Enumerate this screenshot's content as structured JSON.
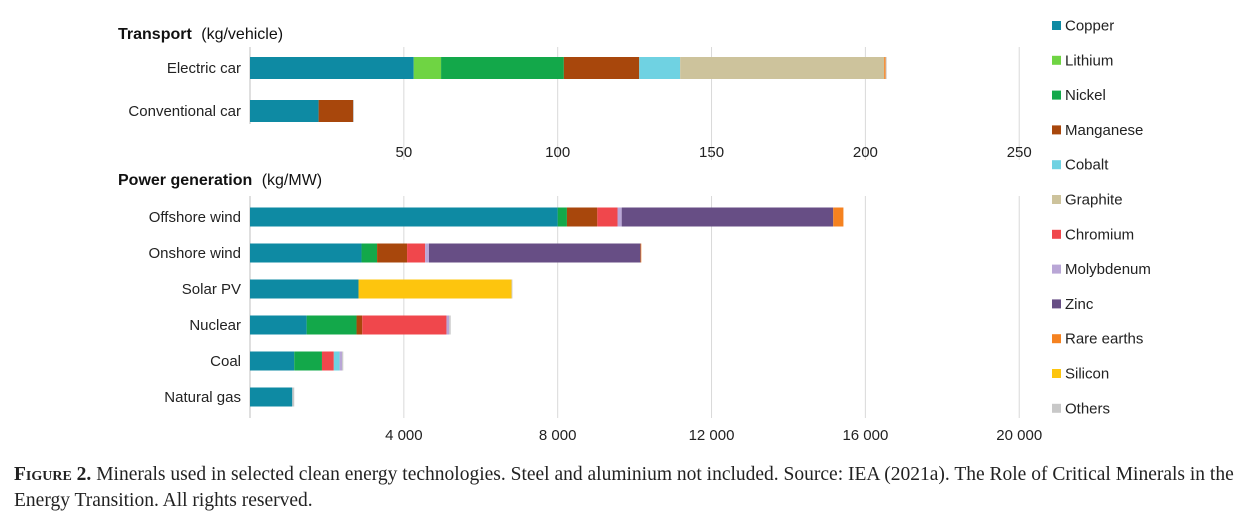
{
  "caption": {
    "figure_number": "Figure 2.",
    "text": "Minerals used in selected clean energy technologies. Steel and aluminium not included. Source: IEA (2021a). The Role of Critical Minerals in the Energy Transition. All rights reserved."
  },
  "colors": {
    "Copper": "#0e8aa3",
    "Lithium": "#6fd443",
    "Nickel": "#13a84a",
    "Manganese": "#a8470c",
    "Cobalt": "#6fd2e2",
    "Graphite": "#cdc39c",
    "Chromium": "#f0474c",
    "Molybdenum": "#b9a6d6",
    "Zinc": "#674e85",
    "Rare earths": "#f58220",
    "Silicon": "#fdc50e",
    "Others": "#c8c8c8"
  },
  "chart_data": [
    {
      "type": "bar",
      "orientation": "horizontal",
      "stacked": true,
      "title": "Transport",
      "title_unit": "(kg/vehicle)",
      "categories": [
        "Electric car",
        "Conventional car"
      ],
      "xlim": [
        0,
        260
      ],
      "xticks": [
        50,
        100,
        150,
        200,
        250
      ],
      "xtick_labels": [
        "50",
        "100",
        "150",
        "200",
        "250"
      ],
      "grid": true,
      "series": [
        {
          "name": "Copper",
          "values": [
            53.2,
            22.3
          ]
        },
        {
          "name": "Lithium",
          "values": [
            8.9,
            0
          ]
        },
        {
          "name": "Nickel",
          "values": [
            39.9,
            0
          ]
        },
        {
          "name": "Manganese",
          "values": [
            24.5,
            11.2
          ]
        },
        {
          "name": "Cobalt",
          "values": [
            13.3,
            0
          ]
        },
        {
          "name": "Graphite",
          "values": [
            66.3,
            0
          ]
        },
        {
          "name": "Chromium",
          "values": [
            0,
            0
          ]
        },
        {
          "name": "Molybdenum",
          "values": [
            0,
            0
          ]
        },
        {
          "name": "Zinc",
          "values": [
            0,
            0
          ]
        },
        {
          "name": "Rare earths",
          "values": [
            0.5,
            0
          ]
        },
        {
          "name": "Silicon",
          "values": [
            0,
            0
          ]
        },
        {
          "name": "Others",
          "values": [
            0.3,
            0.3
          ]
        }
      ]
    },
    {
      "type": "bar",
      "orientation": "horizontal",
      "stacked": true,
      "title": "Power generation",
      "title_unit": "(kg/MW)",
      "categories": [
        "Offshore wind",
        "Onshore wind",
        "Solar PV",
        "Nuclear",
        "Coal",
        "Natural gas"
      ],
      "xlim": [
        0,
        20800
      ],
      "xticks": [
        4000,
        8000,
        12000,
        16000,
        20000
      ],
      "xtick_labels": [
        "4 000",
        "8 000",
        "12 000",
        "16 000",
        "20 000"
      ],
      "grid": true,
      "series": [
        {
          "name": "Copper",
          "values": [
            8000,
            2900,
            2822,
            1473,
            1150,
            1100
          ]
        },
        {
          "name": "Lithium",
          "values": [
            0,
            0,
            0,
            0,
            0,
            0
          ]
        },
        {
          "name": "Nickel",
          "values": [
            240,
            404,
            0,
            1297,
            721,
            0
          ]
        },
        {
          "name": "Manganese",
          "values": [
            790,
            780,
            0,
            148,
            0,
            0
          ]
        },
        {
          "name": "Chromium",
          "values": [
            525,
            470,
            0,
            2190,
            308,
            0
          ]
        },
        {
          "name": "Cobalt",
          "values": [
            0,
            0,
            0,
            0,
            150,
            0
          ]
        },
        {
          "name": "Graphite",
          "values": [
            0,
            0,
            0,
            0,
            0,
            0
          ]
        },
        {
          "name": "Molybdenum",
          "values": [
            109,
            99,
            0,
            70,
            66,
            0
          ]
        },
        {
          "name": "Zinc",
          "values": [
            5500,
            5500,
            0,
            0,
            0,
            0
          ]
        },
        {
          "name": "Rare earths",
          "values": [
            265,
            14,
            0,
            0,
            0,
            0
          ]
        },
        {
          "name": "Silicon",
          "values": [
            0,
            0,
            3980,
            0,
            0,
            0
          ]
        },
        {
          "name": "Others",
          "values": [
            0,
            0,
            20,
            40,
            30,
            50
          ]
        }
      ]
    }
  ],
  "legend": {
    "placement": "right",
    "items": [
      "Copper",
      "Lithium",
      "Nickel",
      "Manganese",
      "Cobalt",
      "Graphite",
      "Chromium",
      "Molybdenum",
      "Zinc",
      "Rare earths",
      "Silicon",
      "Others"
    ]
  }
}
